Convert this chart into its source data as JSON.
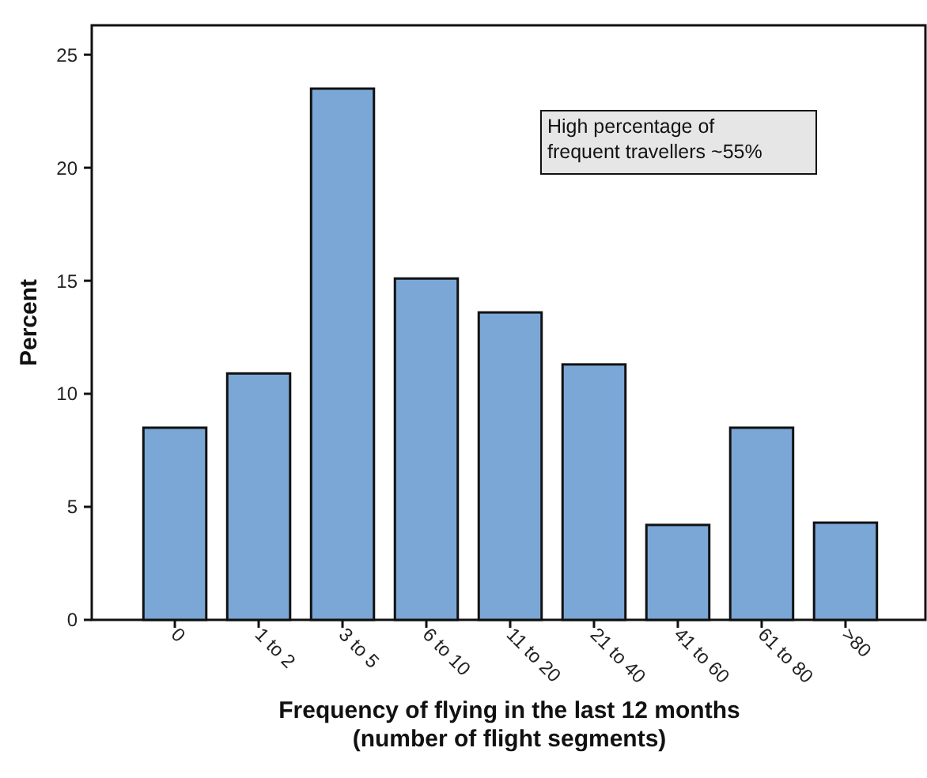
{
  "chart_data": {
    "type": "bar",
    "xlabel": "Frequency of flying in the last 12 months\n(number of flight segments)",
    "ylabel": "Percent",
    "categories": [
      "0",
      "1 to 2",
      "3 to 5",
      "6 to 10",
      "11 to 20",
      "21 to 40",
      "41 to 60",
      "61 to 80",
      ">80"
    ],
    "values": [
      8.5,
      10.9,
      23.5,
      15.1,
      13.6,
      11.3,
      4.2,
      8.5,
      4.3
    ],
    "color": "#7aa7d6",
    "ylim": [
      0,
      26.3
    ],
    "yticks": [
      0,
      5,
      10,
      15,
      20,
      25
    ],
    "grid": false,
    "annotations": [
      "High percentage of\nfrequent travellers ~55%"
    ]
  }
}
